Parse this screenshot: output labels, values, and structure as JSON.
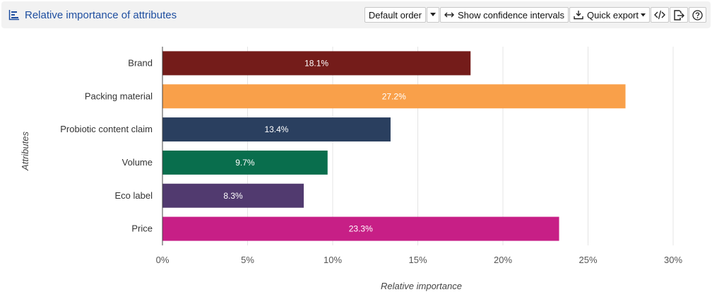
{
  "header": {
    "title": "Relative importance of attributes",
    "title_icon": "bar-chart-icon",
    "accent_color": "#1f4fa0"
  },
  "toolbar": {
    "order_label": "Default order",
    "confidence_label": "Show confidence intervals",
    "export_label": "Quick export",
    "icons": [
      "caret-down-icon",
      "arrows-horizontal-icon",
      "download-icon",
      "code-icon",
      "export-icon",
      "help-icon"
    ]
  },
  "chart_data": {
    "type": "bar",
    "orientation": "horizontal",
    "categories": [
      "Brand",
      "Packing material",
      "Probiotic content claim",
      "Volume",
      "Eco label",
      "Price"
    ],
    "values": [
      18.1,
      27.2,
      13.4,
      9.7,
      8.3,
      23.3
    ],
    "data_labels": [
      "18.1%",
      "27.2%",
      "13.4%",
      "9.7%",
      "8.3%",
      "23.3%"
    ],
    "colors": [
      "#741c1a",
      "#f9a04a",
      "#2a3f5f",
      "#096e4d",
      "#513a6f",
      "#c71f86"
    ],
    "xlabel": "Relative importance",
    "ylabel": "Attributes",
    "xlim": [
      0,
      30
    ],
    "xticks": [
      0,
      5,
      10,
      15,
      20,
      25,
      30
    ],
    "xtick_labels": [
      "0%",
      "5%",
      "10%",
      "15%",
      "20%",
      "25%",
      "30%"
    ],
    "grid": true,
    "legend": "none"
  }
}
